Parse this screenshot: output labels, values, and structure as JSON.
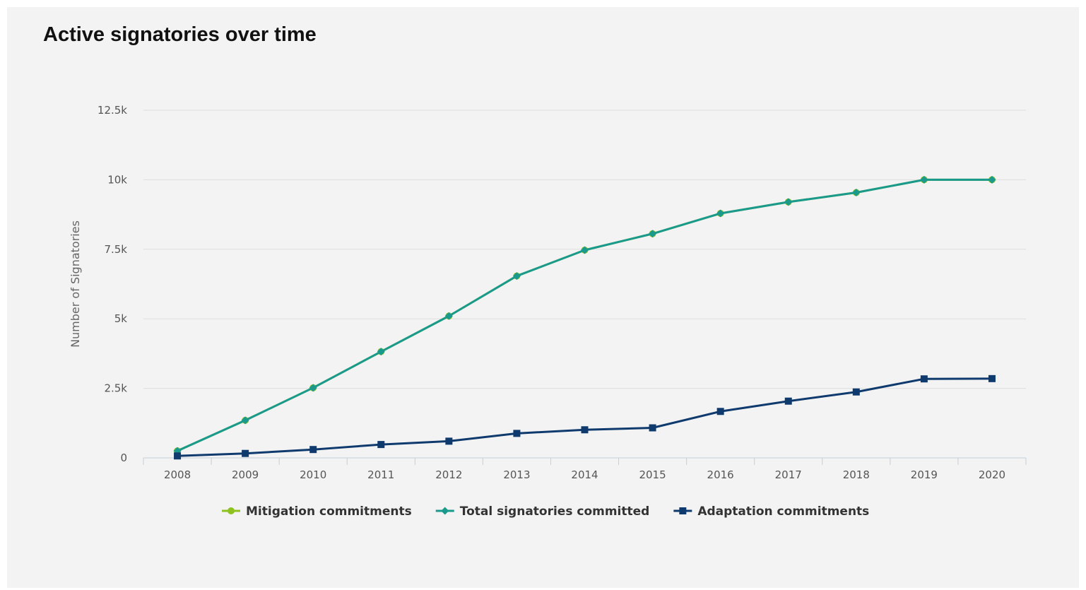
{
  "chart_data": {
    "type": "line",
    "title": "Active signatories over time",
    "xlabel": "",
    "ylabel": "Number of Signatories",
    "categories": [
      "2008",
      "2009",
      "2010",
      "2011",
      "2012",
      "2013",
      "2014",
      "2015",
      "2016",
      "2017",
      "2018",
      "2019",
      "2020"
    ],
    "y_ticks": [
      "0",
      "2.5k",
      "5k",
      "7.5k",
      "10k",
      "12.5k"
    ],
    "y_tick_values": [
      0,
      2500,
      5000,
      7500,
      10000,
      12500
    ],
    "ylim": [
      0,
      12500
    ],
    "grid": true,
    "legend_position": "bottom",
    "series": [
      {
        "name": "Mitigation commitments",
        "color": "#8dc21f",
        "marker": "circle",
        "values": [
          250,
          1350,
          2520,
          3820,
          5100,
          6540,
          7470,
          8060,
          8790,
          9200,
          9540,
          10000,
          10000
        ]
      },
      {
        "name": "Total signatories committed",
        "color": "#1a9a8c",
        "marker": "diamond",
        "values": [
          250,
          1350,
          2520,
          3820,
          5100,
          6540,
          7470,
          8060,
          8790,
          9200,
          9540,
          10000,
          10000
        ]
      },
      {
        "name": "Adaptation commitments",
        "color": "#0f3a6e",
        "marker": "square",
        "values": [
          70,
          160,
          300,
          480,
          600,
          880,
          1010,
          1080,
          1670,
          2040,
          2370,
          2840,
          2850
        ]
      }
    ]
  }
}
